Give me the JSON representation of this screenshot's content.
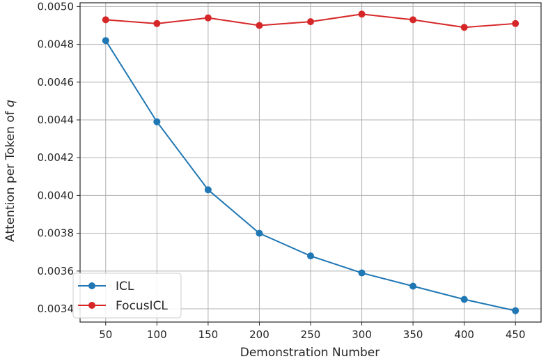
{
  "chart_data": {
    "type": "line",
    "title": "",
    "xlabel": "Demonstration Number",
    "ylabel_prefix": "Attention per Token of ",
    "ylabel_var": "q",
    "x": [
      50,
      100,
      150,
      200,
      250,
      300,
      350,
      400,
      450
    ],
    "xlim": [
      25,
      475
    ],
    "ylim": [
      0.00333,
      0.00502
    ],
    "xticks": [
      "50",
      "100",
      "150",
      "200",
      "250",
      "300",
      "350",
      "400",
      "450"
    ],
    "yticks": [
      "0.0034",
      "0.0036",
      "0.0038",
      "0.0040",
      "0.0042",
      "0.0044",
      "0.0046",
      "0.0048",
      "0.0050"
    ],
    "grid": true,
    "legend_position": "lower-left",
    "series": [
      {
        "name": "ICL",
        "color": "#1f77b4",
        "values": [
          0.00482,
          0.00439,
          0.00403,
          0.0038,
          0.00368,
          0.00359,
          0.00352,
          0.00345,
          0.00339
        ]
      },
      {
        "name": "FocusICL",
        "color": "#d62728",
        "values": [
          0.00493,
          0.00491,
          0.00494,
          0.0049,
          0.00492,
          0.00496,
          0.00493,
          0.00489,
          0.00491
        ]
      }
    ]
  }
}
